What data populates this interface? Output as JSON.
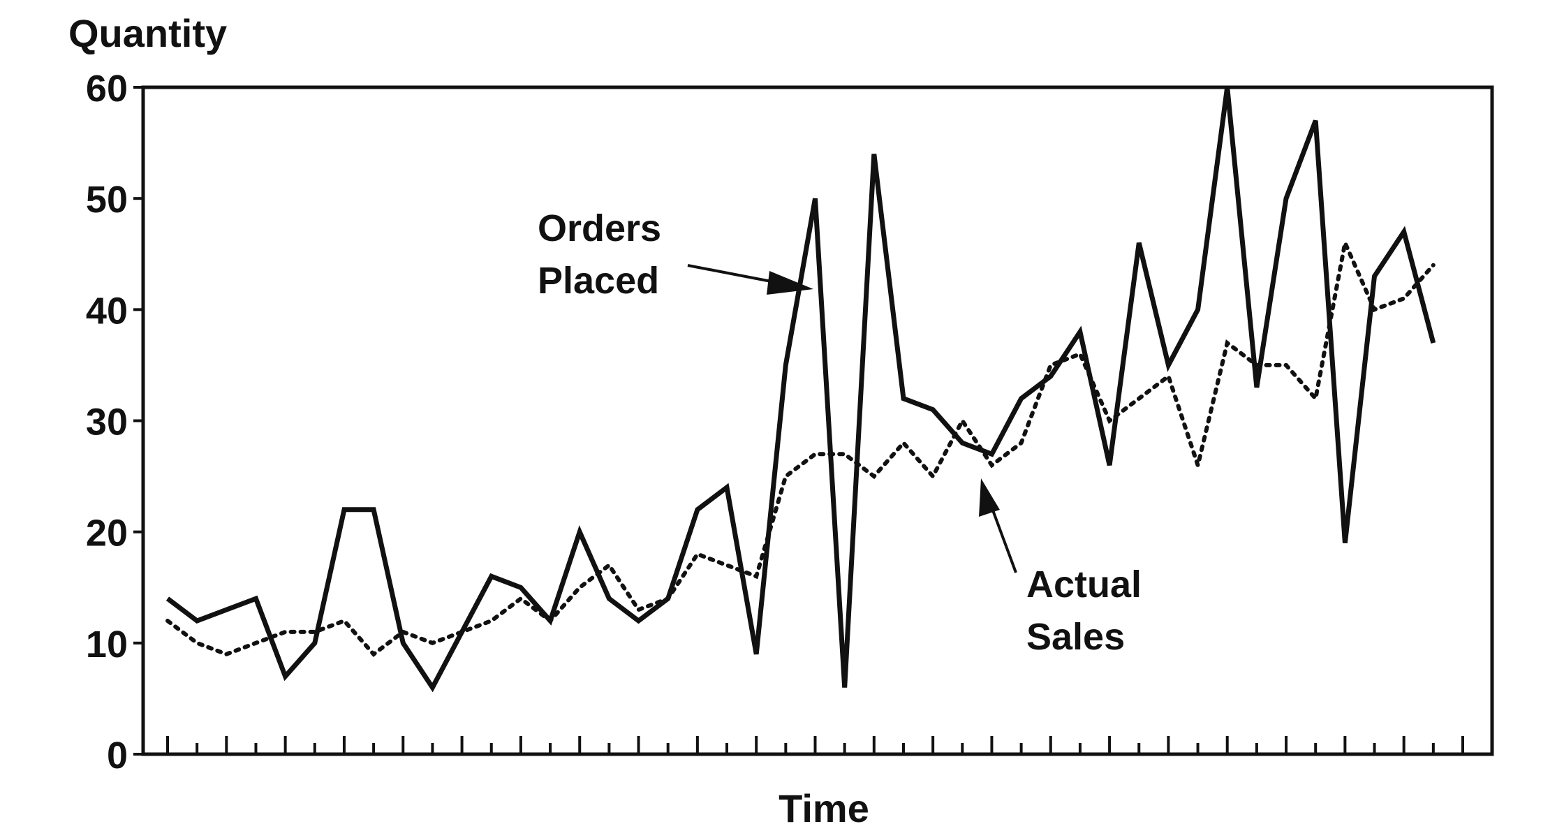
{
  "chart_data": {
    "type": "line",
    "ylabel": "Quantity",
    "xlabel": "Time",
    "ylim": [
      0,
      60
    ],
    "yticks": [
      0,
      10,
      20,
      30,
      40,
      50,
      60
    ],
    "grid": false,
    "legend": "none",
    "x": [
      1,
      2,
      3,
      4,
      5,
      6,
      7,
      8,
      9,
      10,
      11,
      12,
      13,
      14,
      15,
      16,
      17,
      18,
      19,
      20,
      21,
      22,
      23,
      24,
      25,
      26,
      27,
      28,
      29,
      30,
      31,
      32,
      33,
      34,
      35,
      36,
      37,
      38,
      39,
      40,
      41,
      42,
      43,
      44,
      45
    ],
    "series": [
      {
        "name": "Orders Placed",
        "style": "solid",
        "color": "#111111",
        "values": [
          14,
          12,
          13,
          14,
          7,
          10,
          22,
          22,
          10,
          6,
          11,
          16,
          15,
          12,
          20,
          14,
          12,
          14,
          22,
          24,
          9,
          35,
          50,
          6,
          54,
          32,
          31,
          28,
          27,
          32,
          34,
          38,
          26,
          46,
          35,
          40,
          60,
          33,
          50,
          57,
          19,
          43,
          47,
          37,
          null
        ]
      },
      {
        "name": "Actual Sales",
        "style": "dotted",
        "color": "#111111",
        "values": [
          12,
          10,
          9,
          10,
          11,
          11,
          12,
          9,
          11,
          10,
          11,
          12,
          14,
          12,
          15,
          17,
          13,
          14,
          18,
          17,
          16,
          25,
          27,
          27,
          25,
          28,
          25,
          30,
          26,
          28,
          35,
          36,
          30,
          32,
          34,
          26,
          37,
          35,
          35,
          32,
          46,
          40,
          41,
          44,
          null
        ]
      }
    ],
    "annotations": [
      {
        "text_lines": [
          "Orders",
          "Placed"
        ],
        "points_to": "Orders Placed"
      },
      {
        "text_lines": [
          "Actual",
          "Sales"
        ],
        "points_to": "Actual Sales"
      }
    ]
  }
}
